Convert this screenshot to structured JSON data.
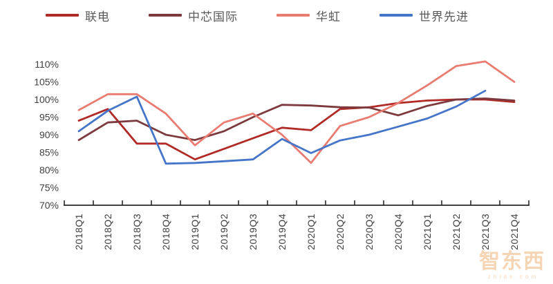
{
  "chart_data": {
    "type": "line",
    "title": "",
    "categories": [
      "2018Q1",
      "2018Q2",
      "2018Q3",
      "2018Q4",
      "2019Q1",
      "2019Q2",
      "2019Q3",
      "2019Q4",
      "2020Q1",
      "2020Q2",
      "2020Q3",
      "2020Q4",
      "2021Q1",
      "2021Q2",
      "2021Q3",
      "2021Q4"
    ],
    "series": [
      {
        "name": "联电",
        "color": "#B02A26",
        "values": [
          94,
          97.3,
          87.5,
          87.5,
          83,
          86,
          89,
          92,
          91.3,
          97.3,
          97.8,
          99,
          99.7,
          100,
          100,
          99.3
        ]
      },
      {
        "name": "中芯国际",
        "color": "#7D3A3E",
        "values": [
          88.5,
          93.5,
          94,
          90,
          88.5,
          91,
          95,
          98.5,
          98.3,
          97.8,
          97.7,
          95.5,
          98.2,
          100,
          100.3,
          99.7
        ]
      },
      {
        "name": "华虹",
        "color": "#E97B71",
        "values": [
          97,
          101.5,
          101.5,
          96,
          87,
          93.5,
          96,
          90,
          82,
          92.5,
          95,
          99,
          104,
          109.5,
          110.8,
          105
        ]
      },
      {
        "name": "世界先进",
        "color": "#4575C9",
        "values": [
          91,
          96.8,
          100.8,
          81.8,
          82,
          82.5,
          83,
          88.8,
          84.8,
          88.4,
          90,
          92.3,
          94.6,
          98,
          102.5,
          null
        ]
      }
    ],
    "ylim": [
      70,
      110
    ],
    "y_tick_step": 5,
    "y_tick_labels": [
      "70%",
      "75%",
      "80%",
      "85%",
      "90%",
      "95%",
      "100%",
      "105%",
      "110%"
    ],
    "grid": false,
    "legend_position": "top",
    "xlabel": "",
    "ylabel": ""
  },
  "watermark": {
    "logo_text": "智东西",
    "sub_text": "z h i d x . c o m"
  }
}
